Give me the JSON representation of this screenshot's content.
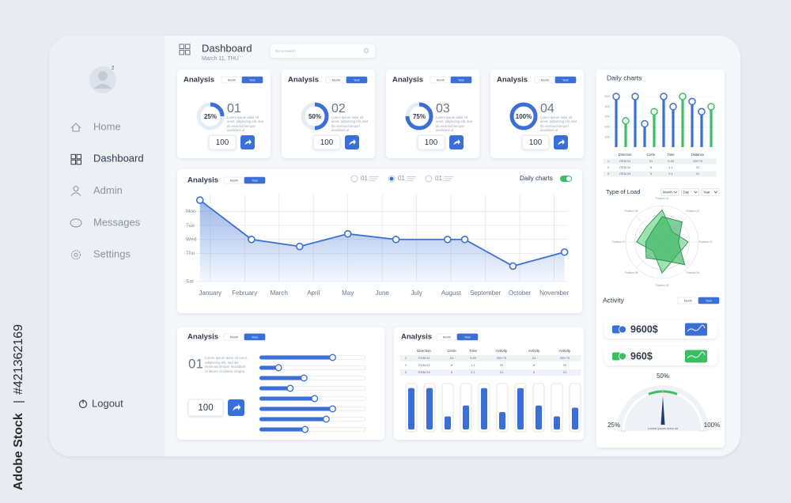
{
  "watermark": {
    "brand": "Adobe Stock",
    "id": "#421362169"
  },
  "sidebar": {
    "badge": "2",
    "menu": [
      "Home",
      "Dashboard",
      "Admin",
      "Messages",
      "Settings"
    ],
    "active": 1,
    "logout": "Logout"
  },
  "header": {
    "title": "Dashboard",
    "date": "March 11, THU",
    "search": "Go to search"
  },
  "cards": [
    {
      "title": "Analysis",
      "tabs": [
        "Month",
        "Year"
      ],
      "percent": 25,
      "percent_label": "25%",
      "number": "01",
      "note": "Lorem ipsum dolor sit amet, adipiscing elit, sed do eiusmod tempor incididunt ut",
      "value": 100
    },
    {
      "title": "Analysis",
      "tabs": [
        "Month",
        "Year"
      ],
      "percent": 50,
      "percent_label": "50%",
      "number": "02",
      "note": "Lorem ipsum dolor sit amet, adipiscing elit, sed do eiusmod tempor incididunt ut",
      "value": 100
    },
    {
      "title": "Analysis",
      "tabs": [
        "Month",
        "Year"
      ],
      "percent": 75,
      "percent_label": "75%",
      "number": "03",
      "note": "Lorem ipsum dolor sit amet, adipiscing elit, sed do eiusmod tempor incididunt ut",
      "value": 100
    },
    {
      "title": "Analysis",
      "tabs": [
        "Month",
        "Year"
      ],
      "percent": 100,
      "percent_label": "100%",
      "number": "04",
      "note": "Lorem ipsum dolor sit amet, adipiscing elit, sed do eiusmod tempor incididunt ut",
      "value": 100
    }
  ],
  "line_panel": {
    "title": "Analysis",
    "tabs": [
      "Month",
      "Year"
    ],
    "legend": [
      "01",
      "01",
      "01"
    ],
    "legend_active": 1,
    "toggle_label": "Daily charts",
    "toggle_on": true,
    "chart": {
      "type": "line",
      "color": "#3b6fd8",
      "grid": true,
      "x": [
        -0.3,
        1.2,
        2.6,
        4.0,
        5.4,
        6.9,
        7.4,
        8.8,
        10.3
      ],
      "values": [
        5.8,
        3.0,
        2.5,
        3.4,
        3.0,
        3.0,
        3.0,
        1.1,
        2.1
      ],
      "xlim": [
        -0.8,
        10.4
      ],
      "ylim": [
        0,
        6.2
      ],
      "xticks": [
        {
          "value": 0,
          "label": "January"
        },
        {
          "value": 1,
          "label": "February"
        },
        {
          "value": 2,
          "label": "March"
        },
        {
          "value": 3,
          "label": "April"
        },
        {
          "value": 4,
          "label": "May"
        },
        {
          "value": 5,
          "label": "June"
        },
        {
          "value": 6,
          "label": "July"
        },
        {
          "value": 7,
          "label": "August"
        },
        {
          "value": 8,
          "label": "September"
        },
        {
          "value": 9,
          "label": "October"
        },
        {
          "value": 10,
          "label": "November"
        }
      ],
      "yticks": [
        {
          "value": 5,
          "label": "Mon"
        },
        {
          "value": 4,
          "label": "Tue"
        },
        {
          "value": 3,
          "label": "Wed"
        },
        {
          "value": 2,
          "label": "Thu"
        },
        {
          "value": 0,
          "label": "Sat"
        }
      ]
    }
  },
  "slider_panel": {
    "title": "Analysis",
    "tabs": [
      "Month",
      "Year"
    ],
    "number": "01",
    "note": "Lorem ipsum dolor sit amet, adipiscing elit, sed do eiusmod tempor incididunt ut labore et dolore magna",
    "value": 100,
    "sliders": [
      69,
      18,
      42,
      29,
      52,
      69,
      63,
      43
    ]
  },
  "table_panel": {
    "title": "Analysis",
    "tabs": [
      "Month",
      "Year"
    ],
    "table": {
      "header": [
        "Direction",
        "Circle",
        "Time",
        "Activity",
        "Activity",
        "Activity"
      ],
      "rows": [
        [
          "1",
          "ITEM 01",
          "21",
          "9.49",
          "209.79",
          "21",
          "209.79"
        ],
        [
          "2",
          "ITEM 02",
          "8",
          "1.1",
          "22",
          "8",
          "22"
        ],
        [
          "3",
          "ITEM 03",
          "5",
          "2.1",
          "21",
          "5",
          "21"
        ]
      ]
    },
    "bars": [
      95,
      95,
      30,
      55,
      95,
      40,
      95,
      55,
      30,
      50
    ]
  },
  "daily": {
    "title": "Daily charts",
    "chart": {
      "type": "bar",
      "ylim": [
        0,
        550
      ],
      "yticks": [
        100,
        200,
        300,
        400,
        500
      ],
      "series": [
        {
          "color": "#3b6fd8",
          "values": [
            500,
            null,
            500,
            230,
            null,
            500,
            400,
            null,
            450,
            350,
            null
          ]
        },
        {
          "color": "#3cbf63",
          "values": [
            null,
            260,
            null,
            null,
            350,
            null,
            null,
            500,
            null,
            null,
            400
          ]
        }
      ]
    },
    "table": {
      "header": [
        "Direction",
        "Circle",
        "Time",
        "Distance"
      ],
      "rows": [
        [
          "1",
          "ITEM 01",
          "21",
          "9.49",
          "209.79"
        ],
        [
          "2",
          "ITEM 02",
          "6",
          "1.1",
          "22"
        ],
        [
          "3",
          "ITEM 03",
          "5",
          "2.1",
          "21"
        ]
      ]
    }
  },
  "load": {
    "title": "Type of Load",
    "selects": [
      "Month",
      "Day",
      "Year"
    ],
    "axes": [
      "Position 01",
      "Position 02",
      "Position 03",
      "Position 04",
      "Position 05",
      "Position 06",
      "Position 07",
      "Position 08"
    ],
    "series": [
      {
        "color": "#5fd17f",
        "values": [
          88,
          40,
          72,
          55,
          85,
          35,
          70,
          60
        ]
      },
      {
        "color": "#2fae58",
        "values": [
          70,
          78,
          45,
          88,
          50,
          62,
          45,
          40
        ]
      }
    ]
  },
  "activity": {
    "title": "Activity",
    "tabs": [
      "Month",
      "Year"
    ],
    "items": [
      {
        "amount": "9600$",
        "color": "#3b6fd8"
      },
      {
        "amount": "960$",
        "color": "#3cbf63"
      }
    ],
    "gauge": {
      "value": 50,
      "ticks": [
        {
          "value": 25,
          "label": "25%"
        },
        {
          "value": 50,
          "label": "50%"
        },
        {
          "value": 100,
          "label": "100%"
        }
      ],
      "caption": "Lorem ipsum dolor sit"
    }
  }
}
